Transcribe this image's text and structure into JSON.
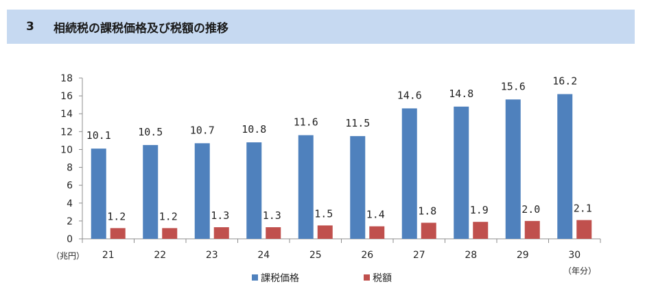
{
  "header": {
    "number": "3",
    "title": "相続税の課税価格及び税額の推移"
  },
  "chart_data": {
    "type": "bar",
    "categories": [
      "21",
      "22",
      "23",
      "24",
      "25",
      "26",
      "27",
      "28",
      "29",
      "30"
    ],
    "series": [
      {
        "name": "課税価格",
        "color": "#4f81bd",
        "values": [
          10.1,
          10.5,
          10.7,
          10.8,
          11.6,
          11.5,
          14.6,
          14.8,
          15.6,
          16.2
        ],
        "labels": [
          "10.1",
          "10.5",
          "10.7",
          "10.8",
          "11.6",
          "11.5",
          "14.6",
          "14.8",
          "15.6",
          "16.2"
        ]
      },
      {
        "name": "税額",
        "color": "#c0504d",
        "values": [
          1.2,
          1.2,
          1.3,
          1.3,
          1.5,
          1.4,
          1.8,
          1.9,
          2.0,
          2.1
        ],
        "labels": [
          "1.2",
          "1.2",
          "1.3",
          "1.3",
          "1.5",
          "1.4",
          "1.8",
          "1.9",
          "2.0",
          "2.1"
        ]
      }
    ],
    "ylim": [
      0,
      18
    ],
    "yticks": [
      "0",
      "2",
      "4",
      "6",
      "8",
      "10",
      "12",
      "14",
      "16",
      "18"
    ],
    "y_unit": "（兆円）",
    "x_unit": "（年分）",
    "grid": false,
    "legend_position": "bottom"
  }
}
